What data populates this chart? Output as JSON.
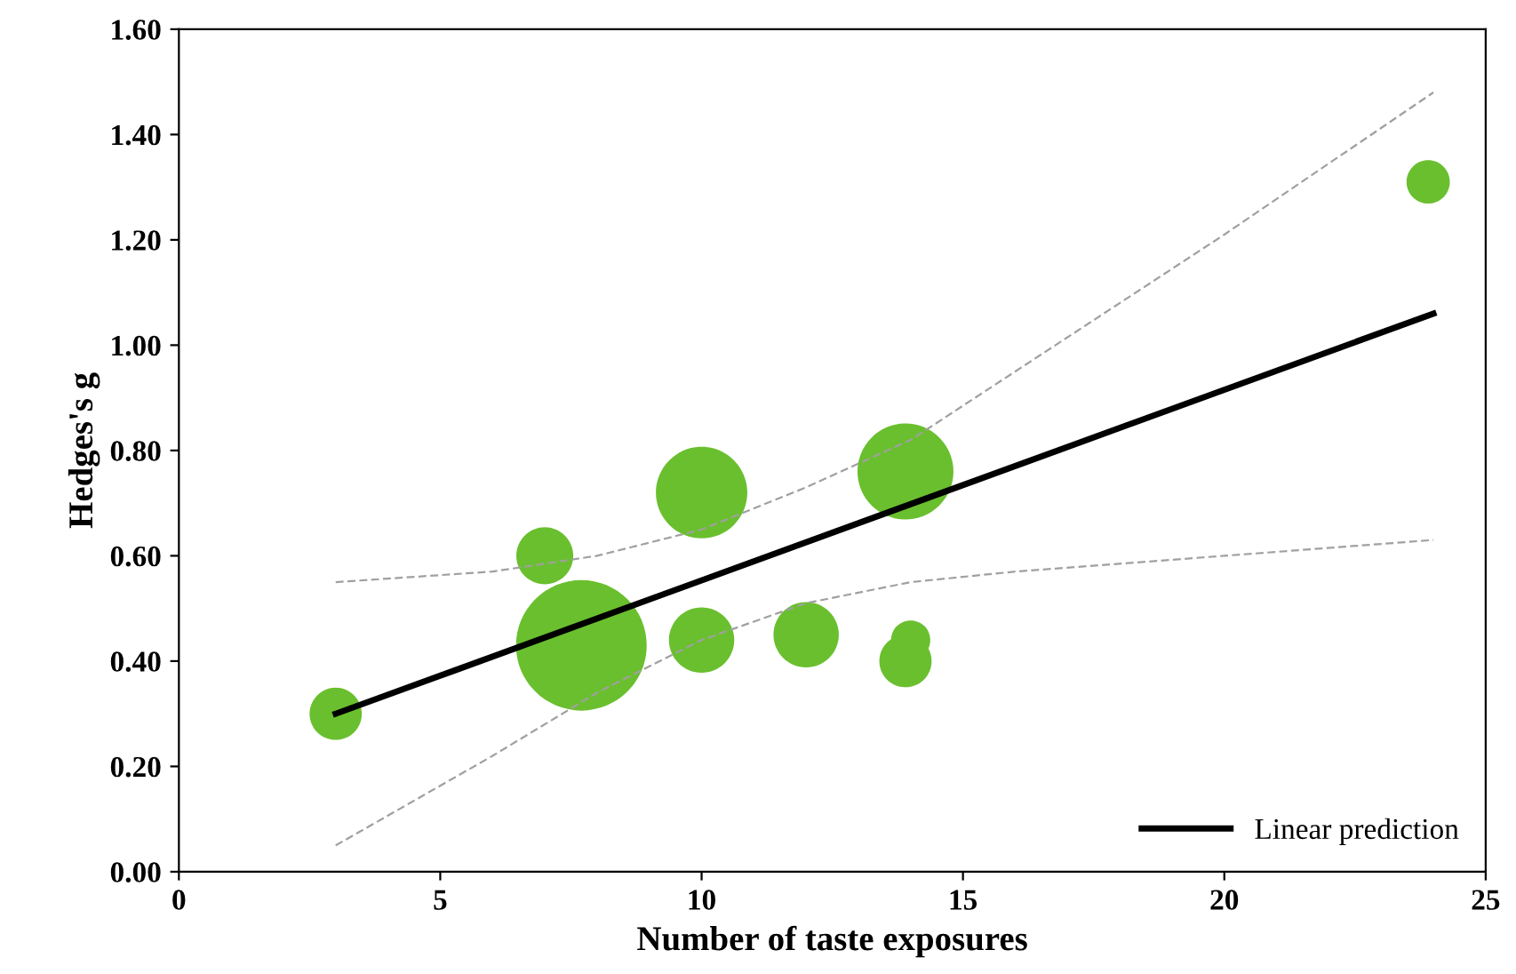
{
  "chart_data": {
    "type": "bubble",
    "xlabel": "Number of taste exposures",
    "ylabel": "Hedges's g",
    "xlim": [
      0,
      25
    ],
    "xticks": [
      0,
      5,
      10,
      15,
      20,
      25
    ],
    "ylim": [
      0,
      1.6
    ],
    "yticks": [
      {
        "value": 0,
        "label": "0.00"
      },
      {
        "value": 0.2,
        "label": "0.20"
      },
      {
        "value": 0.4,
        "label": "0.40"
      },
      {
        "value": 0.6,
        "label": "0.60"
      },
      {
        "value": 0.8,
        "label": "0.80"
      },
      {
        "value": 1.0,
        "label": "1.00"
      },
      {
        "value": 1.2,
        "label": "1.20"
      },
      {
        "value": 1.4,
        "label": "1.40"
      },
      {
        "value": 1.6,
        "label": "1.60"
      }
    ],
    "grid": false,
    "legend": "bottom right",
    "series": [
      {
        "color": "#6abf2e",
        "x": [
          3,
          7,
          7.7,
          10,
          10,
          12,
          13.9,
          14,
          13.9,
          23.9
        ],
        "values": [
          0.3,
          0.6,
          0.43,
          0.44,
          0.72,
          0.45,
          0.76,
          0.44,
          0.4,
          1.31
        ],
        "sizes": [
          0.16,
          0.19,
          1,
          0.25,
          0.49,
          0.25,
          0.54,
          0.09,
          0.16,
          0.11
        ]
      },
      {
        "type": "line",
        "color": "#a0a0a0",
        "line_style": "dashed",
        "x": [
          3,
          6,
          8,
          10,
          12,
          14,
          16,
          20,
          24
        ],
        "values": [
          0.05,
          0.22,
          0.34,
          0.44,
          0.51,
          0.55,
          0.57,
          0.6,
          0.63
        ]
      },
      {
        "type": "line",
        "color": "#a0a0a0",
        "line_style": "dashed",
        "x": [
          3,
          6,
          8,
          10,
          12,
          14,
          16,
          20,
          24
        ],
        "values": [
          0.55,
          0.57,
          0.6,
          0.65,
          0.73,
          0.82,
          0.95,
          1.21,
          1.48
        ]
      },
      {
        "type": "line",
        "name": "Linear prediction",
        "color": "#000000",
        "line_style": "solid",
        "x": [
          3,
          24
        ],
        "values": [
          0.3,
          1.06
        ]
      }
    ]
  }
}
